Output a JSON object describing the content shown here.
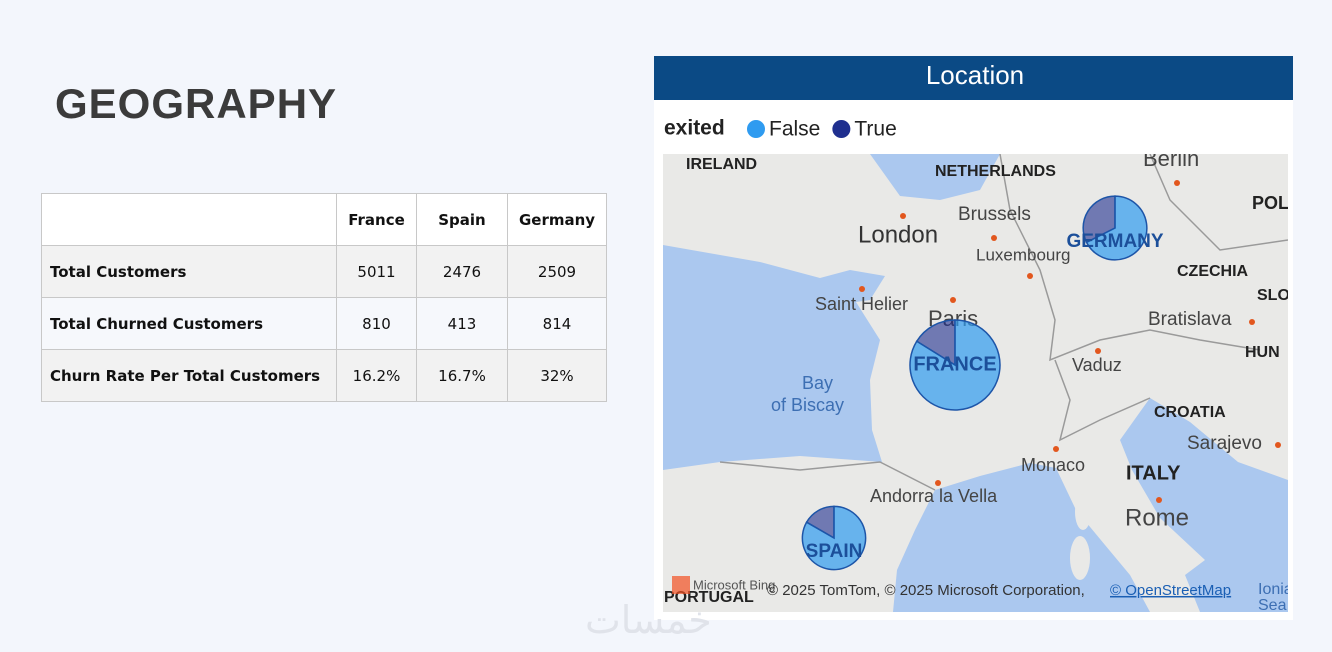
{
  "header": {
    "title": "GEOGRAPHY"
  },
  "table": {
    "columns": [
      "France",
      "Spain",
      "Germany"
    ],
    "rows": [
      [
        "Total Customers",
        "5011",
        "2476",
        "2509"
      ],
      [
        "Total Churned Customers",
        "810",
        "413",
        "814"
      ],
      [
        "Churn Rate Per Total Customers",
        "16.2%",
        "16.7%",
        "32%"
      ]
    ]
  },
  "map": {
    "title": "Location",
    "legend": {
      "title": "exited",
      "entries": [
        {
          "name": "False",
          "color": "#2f9bf0"
        },
        {
          "name": "True",
          "color": "#1f2f8f"
        }
      ]
    },
    "places": [
      "IRELAND",
      "NETHERLANDS",
      "Berlin",
      "POL",
      "Brussels",
      "London",
      "Luxembourg",
      "CZECHIA",
      "SLO",
      "Saint Helier",
      "Paris",
      "Bratislava",
      "HUN",
      "Vaduz",
      "Bay",
      "of Biscay",
      "CROATIA",
      "Sarajevo",
      "Monaco",
      "ITALY",
      "Andorra la Vella",
      "Rome",
      "PORTUGAL",
      "Ionian",
      "Sea"
    ],
    "pies": [
      {
        "label": "FRANCE",
        "values": [
          4201,
          810
        ]
      },
      {
        "label": "SPAIN",
        "values": [
          2063,
          413
        ]
      },
      {
        "label": "GERMANY",
        "values": [
          1695,
          814
        ]
      }
    ],
    "logo": "Microsoft Bing",
    "attribution": "© 2025 TomTom, © 2025 Microsoft Corporation,",
    "attribution_link": "© OpenStreetMap"
  },
  "watermark": "خمسات"
}
